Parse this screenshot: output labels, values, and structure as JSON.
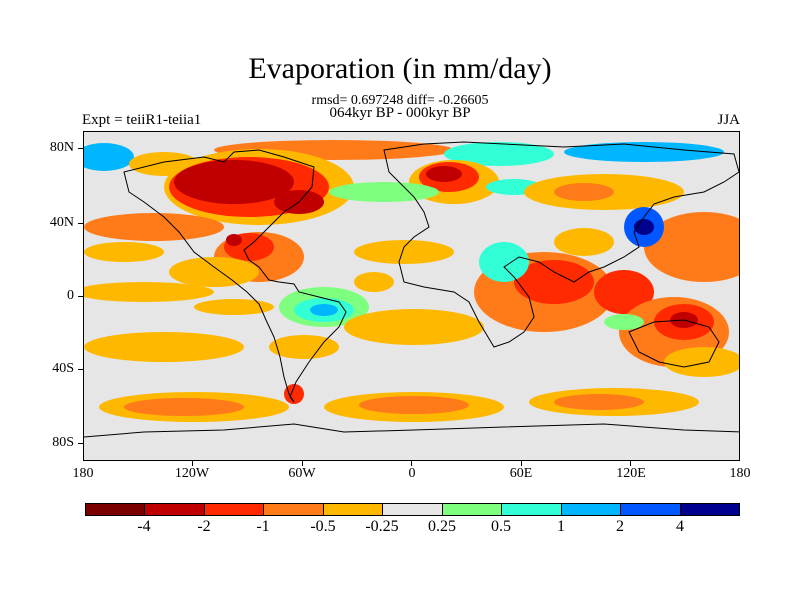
{
  "title": "Evaporation (in mm/day)",
  "subtitle_stats": "rmsd= 0.697248 diff= -0.26605",
  "subtitle_period": "064kyr BP - 000kyr BP",
  "left_string": "Expt = teiiR1-teiia1",
  "right_string": "JJA",
  "lat_labels": [
    "80N",
    "40N",
    "0",
    "40S",
    "80S"
  ],
  "lon_labels": [
    "180",
    "120W",
    "60W",
    "0",
    "60E",
    "120E",
    "180"
  ],
  "legend": {
    "colors": [
      "#7a0000",
      "#c00000",
      "#ff2a00",
      "#ff7b1a",
      "#ffb800",
      "#e6e6e6",
      "#7fff7f",
      "#33ffd6",
      "#00b7ff",
      "#0057ff",
      "#00008f"
    ],
    "labels": [
      "-4",
      "-2",
      "-1",
      "-0.5",
      "-0.25",
      "0.25",
      "0.5",
      "1",
      "2",
      "4"
    ]
  },
  "colors": {
    "neutral": "#e6e6e6",
    "pos_light": "#7fff7f",
    "pos_mid": "#33ffd6",
    "pos_strong": "#00b7ff",
    "neg_weak": "#ffb800",
    "neg_mid": "#ff7b1a",
    "neg_strong": "#ff2a00",
    "neg_max": "#c00000"
  }
}
